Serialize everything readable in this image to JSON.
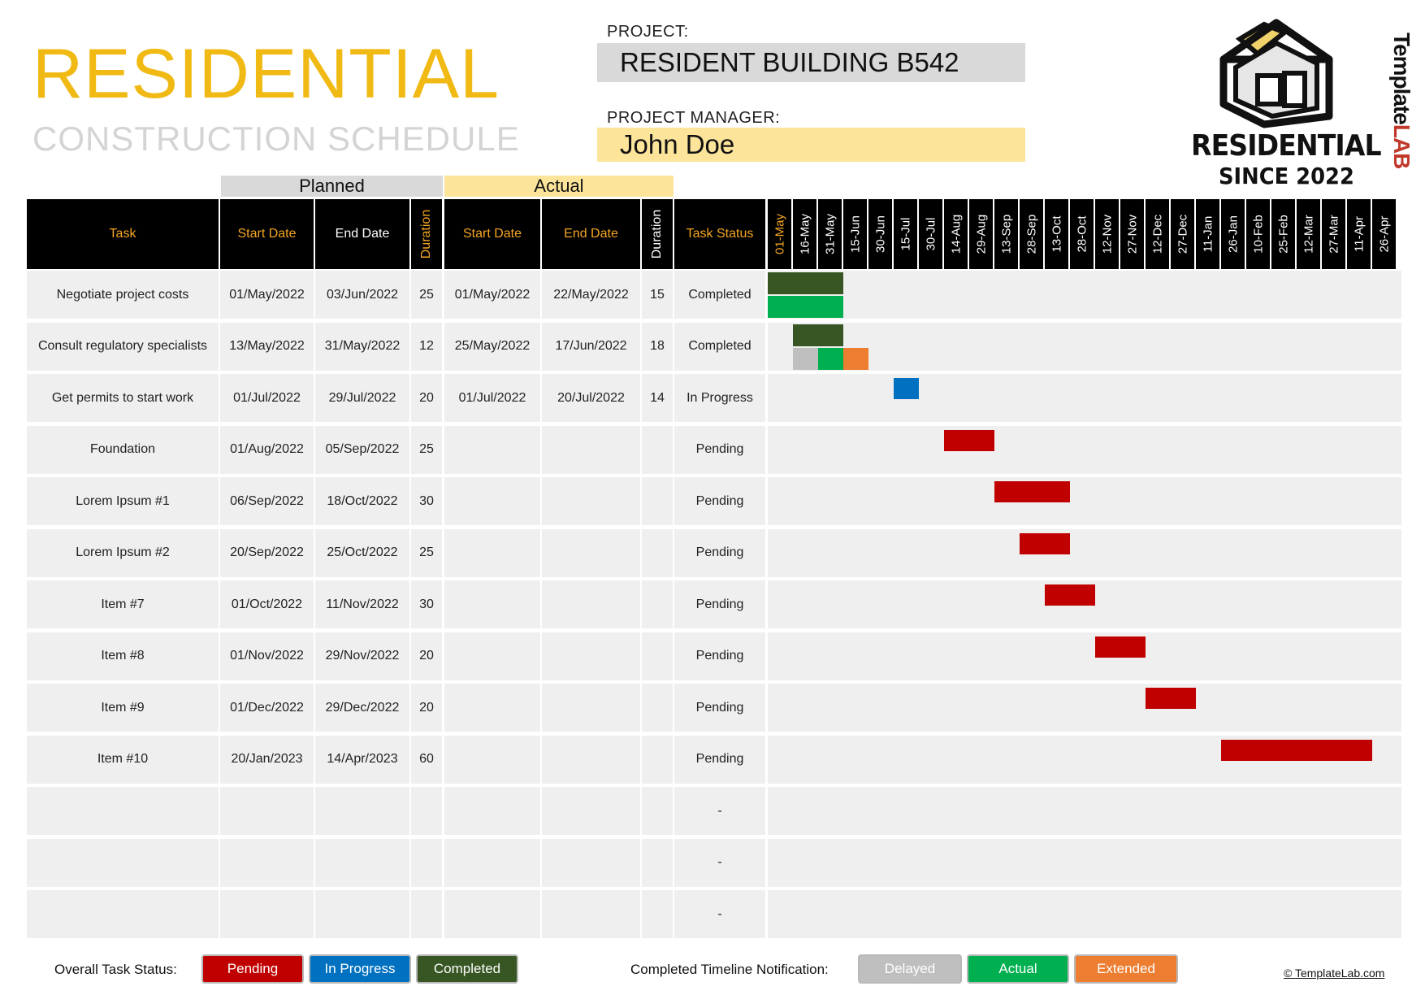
{
  "header": {
    "title": "RESIDENTIAL",
    "subtitle": "CONSTRUCTION SCHEDULE",
    "project_label": "PROJECT:",
    "project_name": "RESIDENT BUILDING B542",
    "manager_label": "PROJECT MANAGER:",
    "manager_name": "John Doe"
  },
  "logo": {
    "line1": "RESIDENTIAL",
    "line2": "SINCE 2022",
    "side_brand_a": "Template",
    "side_brand_b": "LAB"
  },
  "groups": {
    "planned": "Planned",
    "actual": "Actual"
  },
  "columns": {
    "task": "Task",
    "planned_start": "Start Date",
    "planned_end": "End Date",
    "planned_duration": "Duration",
    "actual_start": "Start Date",
    "actual_end": "End Date",
    "actual_duration": "Duration",
    "status": "Task Status"
  },
  "timeline_dates": [
    "01-May",
    "16-May",
    "31-May",
    "15-Jun",
    "30-Jun",
    "15-Jul",
    "30-Jul",
    "14-Aug",
    "29-Aug",
    "13-Sep",
    "28-Sep",
    "13-Oct",
    "28-Oct",
    "12-Nov",
    "27-Nov",
    "12-Dec",
    "27-Dec",
    "11-Jan",
    "26-Jan",
    "10-Feb",
    "25-Feb",
    "12-Mar",
    "27-Mar",
    "11-Apr",
    "26-Apr"
  ],
  "tasks": [
    {
      "task": "Negotiate project costs",
      "p_start": "01/May/2022",
      "p_end": "03/Jun/2022",
      "p_dur": "25",
      "a_start": "01/May/2022",
      "a_end": "22/May/2022",
      "a_dur": "15",
      "status": "Completed"
    },
    {
      "task": "Consult regulatory specialists",
      "p_start": "13/May/2022",
      "p_end": "31/May/2022",
      "p_dur": "12",
      "a_start": "25/May/2022",
      "a_end": "17/Jun/2022",
      "a_dur": "18",
      "status": "Completed"
    },
    {
      "task": "Get permits to start work",
      "p_start": "01/Jul/2022",
      "p_end": "29/Jul/2022",
      "p_dur": "20",
      "a_start": "01/Jul/2022",
      "a_end": "20/Jul/2022",
      "a_dur": "14",
      "status": "In Progress"
    },
    {
      "task": "Foundation",
      "p_start": "01/Aug/2022",
      "p_end": "05/Sep/2022",
      "p_dur": "25",
      "a_start": "",
      "a_end": "",
      "a_dur": "",
      "status": "Pending"
    },
    {
      "task": "Lorem Ipsum #1",
      "p_start": "06/Sep/2022",
      "p_end": "18/Oct/2022",
      "p_dur": "30",
      "a_start": "",
      "a_end": "",
      "a_dur": "",
      "status": "Pending"
    },
    {
      "task": "Lorem Ipsum #2",
      "p_start": "20/Sep/2022",
      "p_end": "25/Oct/2022",
      "p_dur": "25",
      "a_start": "",
      "a_end": "",
      "a_dur": "",
      "status": "Pending"
    },
    {
      "task": "Item #7",
      "p_start": "01/Oct/2022",
      "p_end": "11/Nov/2022",
      "p_dur": "30",
      "a_start": "",
      "a_end": "",
      "a_dur": "",
      "status": "Pending"
    },
    {
      "task": "Item #8",
      "p_start": "01/Nov/2022",
      "p_end": "29/Nov/2022",
      "p_dur": "20",
      "a_start": "",
      "a_end": "",
      "a_dur": "",
      "status": "Pending"
    },
    {
      "task": "Item #9",
      "p_start": "01/Dec/2022",
      "p_end": "29/Dec/2022",
      "p_dur": "20",
      "a_start": "",
      "a_end": "",
      "a_dur": "",
      "status": "Pending"
    },
    {
      "task": "Item #10",
      "p_start": "20/Jan/2023",
      "p_end": "14/Apr/2023",
      "p_dur": "60",
      "a_start": "",
      "a_end": "",
      "a_dur": "",
      "status": "Pending"
    },
    {
      "task": "",
      "p_start": "",
      "p_end": "",
      "p_dur": "",
      "a_start": "",
      "a_end": "",
      "a_dur": "",
      "status": "-"
    },
    {
      "task": "",
      "p_start": "",
      "p_end": "",
      "p_dur": "",
      "a_start": "",
      "a_end": "",
      "a_dur": "",
      "status": "-"
    },
    {
      "task": "",
      "p_start": "",
      "p_end": "",
      "p_dur": "",
      "a_start": "",
      "a_end": "",
      "a_dur": "",
      "status": "-"
    }
  ],
  "gantt_bars": [
    {
      "row": 0,
      "segments": [
        {
          "kind": "planned-completed",
          "from": 0,
          "to": 3,
          "lane": "top"
        },
        {
          "kind": "actual",
          "from": 0,
          "to": 3,
          "lane": "bottom"
        }
      ]
    },
    {
      "row": 1,
      "segments": [
        {
          "kind": "planned-completed",
          "from": 1,
          "to": 3,
          "lane": "top"
        },
        {
          "kind": "delayed",
          "from": 1,
          "to": 2,
          "lane": "bottom"
        },
        {
          "kind": "actual",
          "from": 2,
          "to": 3,
          "lane": "bottom"
        },
        {
          "kind": "extended",
          "from": 3,
          "to": 4,
          "lane": "bottom"
        }
      ]
    },
    {
      "row": 2,
      "segments": [
        {
          "kind": "in-progress",
          "from": 5,
          "to": 6,
          "lane": "mid"
        }
      ]
    },
    {
      "row": 3,
      "segments": [
        {
          "kind": "pending",
          "from": 7,
          "to": 9,
          "lane": "mid"
        }
      ]
    },
    {
      "row": 4,
      "segments": [
        {
          "kind": "pending",
          "from": 9,
          "to": 12,
          "lane": "mid"
        }
      ]
    },
    {
      "row": 5,
      "segments": [
        {
          "kind": "pending",
          "from": 10,
          "to": 12,
          "lane": "mid"
        }
      ]
    },
    {
      "row": 6,
      "segments": [
        {
          "kind": "pending",
          "from": 11,
          "to": 13,
          "lane": "mid"
        }
      ]
    },
    {
      "row": 7,
      "segments": [
        {
          "kind": "pending",
          "from": 13,
          "to": 15,
          "lane": "mid"
        }
      ]
    },
    {
      "row": 8,
      "segments": [
        {
          "kind": "pending",
          "from": 15,
          "to": 17,
          "lane": "mid"
        }
      ]
    },
    {
      "row": 9,
      "segments": [
        {
          "kind": "pending",
          "from": 18,
          "to": 24,
          "lane": "mid"
        }
      ]
    }
  ],
  "colors": {
    "pending": "#c00000",
    "in-progress": "#0070c0",
    "planned-completed": "#375623",
    "actual": "#00b050",
    "delayed": "#bfbfbf",
    "extended": "#ed7d31"
  },
  "legend": {
    "status_label": "Overall Task Status:",
    "pending": "Pending",
    "in_progress": "In Progress",
    "completed": "Completed",
    "timeline_label": "Completed Timeline Notification:",
    "delayed": "Delayed",
    "actual": "Actual",
    "extended": "Extended"
  },
  "footer": {
    "copyright": "© TemplateLab.com"
  }
}
